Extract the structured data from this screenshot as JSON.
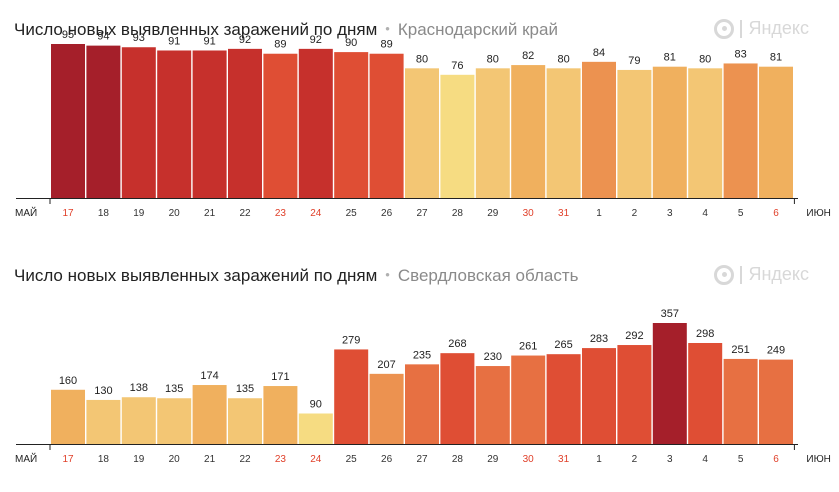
{
  "brand": {
    "logo_text": "Яндекс"
  },
  "chart_data": [
    {
      "type": "bar",
      "title": "Число новых выявленных заражений по дням",
      "subtitle": "Краснодарский край",
      "x_start_label": "МАЙ",
      "x_end_label": "ИЮН",
      "categories": [
        "17",
        "18",
        "19",
        "20",
        "21",
        "22",
        "23",
        "24",
        "25",
        "26",
        "27",
        "28",
        "29",
        "30",
        "31",
        "1",
        "2",
        "3",
        "4",
        "5",
        "6"
      ],
      "weekend_categories": [
        "17",
        "23",
        "24",
        "30",
        "31",
        "6"
      ],
      "values": [
        95,
        94,
        93,
        91,
        91,
        92,
        89,
        92,
        90,
        89,
        80,
        76,
        80,
        82,
        80,
        84,
        79,
        81,
        80,
        83,
        81
      ],
      "ylim": [
        0,
        95
      ],
      "legend": "none",
      "grid": false
    },
    {
      "type": "bar",
      "title": "Число новых выявленных заражений по дням",
      "subtitle": "Свердловская область",
      "x_start_label": "МАЙ",
      "x_end_label": "ИЮН",
      "categories": [
        "17",
        "18",
        "19",
        "20",
        "21",
        "22",
        "23",
        "24",
        "25",
        "26",
        "27",
        "28",
        "29",
        "30",
        "31",
        "1",
        "2",
        "3",
        "4",
        "5",
        "6"
      ],
      "weekend_categories": [
        "17",
        "23",
        "24",
        "30",
        "31",
        "6"
      ],
      "values": [
        160,
        130,
        138,
        135,
        174,
        135,
        171,
        90,
        279,
        207,
        235,
        268,
        230,
        261,
        265,
        283,
        292,
        357,
        298,
        251,
        249
      ],
      "ylim": [
        0,
        357
      ],
      "legend": "none",
      "grid": false
    }
  ],
  "colors": {
    "weekend_tick": "#e0402a",
    "tick": "#333333",
    "axis": "#222222",
    "palette": [
      "#f6dc82",
      "#f3c674",
      "#f0b05e",
      "#ec9250",
      "#e77042",
      "#df4e34",
      "#c6302c",
      "#a51f2a"
    ]
  }
}
